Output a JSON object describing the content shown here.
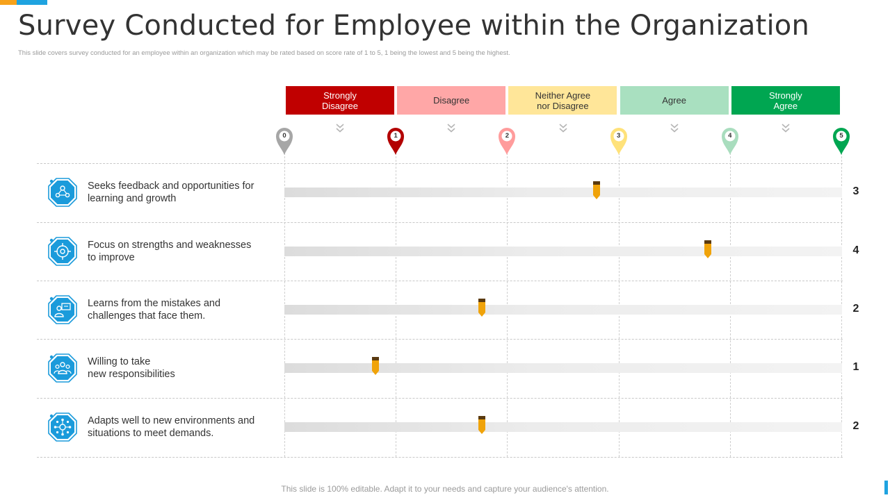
{
  "header": {
    "title": "Survey Conducted for Employee within the Organization",
    "subtitle": "This slide covers survey conducted for an employee within an organization which may be rated based on score rate of 1 to 5, 1 being the lowest and 5 being the highest."
  },
  "scale": [
    {
      "label": "Strongly\nDisagree",
      "bg": "#C00000",
      "color": "#ffffff"
    },
    {
      "label": "Disagree",
      "bg": "#FFA7A7",
      "color": "#333333"
    },
    {
      "label": "Neither Agree\nnor Disagree",
      "bg": "#FFE699",
      "color": "#333333"
    },
    {
      "label": "Agree",
      "bg": "#A9E0C0",
      "color": "#333333"
    },
    {
      "label": "Strongly\nAgree",
      "bg": "#00A651",
      "color": "#ffffff"
    }
  ],
  "pins": [
    {
      "label": "0",
      "color": "#A6A6A6"
    },
    {
      "label": "1",
      "color": "#B30000"
    },
    {
      "label": "2",
      "color": "#FF9C9C"
    },
    {
      "label": "3",
      "color": "#FFE27A"
    },
    {
      "label": "4",
      "color": "#A9DDBE"
    },
    {
      "label": "5",
      "color": "#00A651"
    }
  ],
  "statements": [
    {
      "text": "Seeks feedback and opportunities for\nlearning and growth",
      "score": "3",
      "value": 2.8,
      "icon": "network-people-icon"
    },
    {
      "text": "Focus on strengths and weaknesses\nto improve",
      "score": "4",
      "value": 3.8,
      "icon": "target-focus-icon"
    },
    {
      "text": "Learns from the mistakes and\nchallenges that face them.",
      "score": "2",
      "value": 1.77,
      "icon": "person-presentation-icon"
    },
    {
      "text": "Willing to take\nnew responsibilities",
      "score": "1",
      "value": 0.82,
      "icon": "team-group-icon"
    },
    {
      "text": "Adapts well to new environments and\nsituations to meet demands.",
      "score": "2",
      "value": 1.77,
      "icon": "hub-network-icon"
    }
  ],
  "footer": {
    "text": "This slide is 100% editable. Adapt it to your needs and capture your audience's attention."
  },
  "colors": {
    "accent_orange": "#F7A21B",
    "accent_blue": "#1FA3E0",
    "icon_blue": "#1B9BDB",
    "marker_body": "#F0A30A",
    "marker_cap": "#5A3A10"
  }
}
